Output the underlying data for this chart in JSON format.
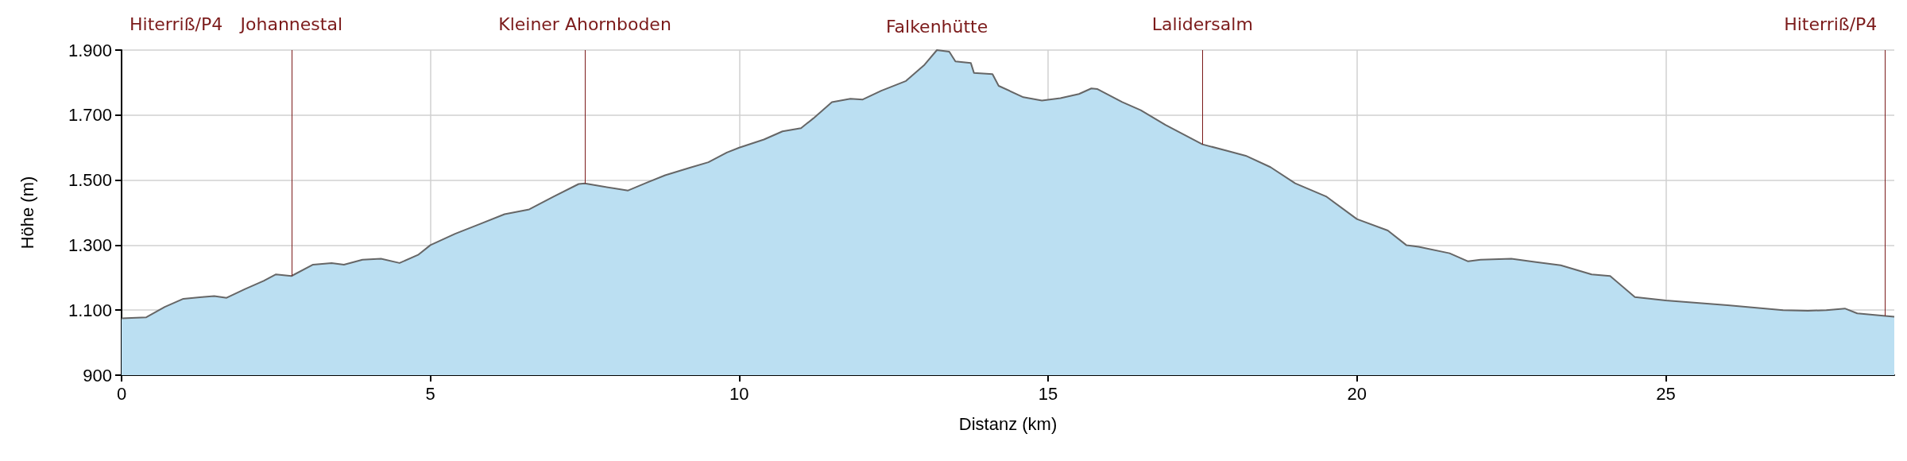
{
  "chart_data": {
    "type": "area",
    "xlabel": "Distanz (km)",
    "ylabel": "Höhe (m)",
    "xlim": [
      0,
      28.7
    ],
    "xticks": [
      0,
      5,
      10,
      15,
      20,
      25
    ],
    "ylim": [
      900,
      1900
    ],
    "yticks": [
      {
        "value": 900,
        "label": "900"
      },
      {
        "value": 1100,
        "label": "1.100"
      },
      {
        "value": 1300,
        "label": "1.300"
      },
      {
        "value": 1500,
        "label": "1.500"
      },
      {
        "value": 1700,
        "label": "1.700"
      },
      {
        "value": 1900,
        "label": "1.900"
      }
    ],
    "grid": true,
    "marker": "none",
    "line_style": "solid",
    "series": [
      {
        "color": "#bbdff2",
        "x": [
          0,
          0.4,
          0.7,
          1.0,
          1.3,
          1.5,
          1.7,
          2.0,
          2.3,
          2.5,
          2.75,
          3.1,
          3.4,
          3.6,
          3.9,
          4.2,
          4.5,
          4.8,
          5.0,
          5.4,
          5.8,
          6.2,
          6.6,
          7.0,
          7.4,
          7.5,
          7.8,
          8.0,
          8.2,
          8.5,
          8.8,
          9.2,
          9.5,
          9.8,
          10.0,
          10.4,
          10.7,
          11.0,
          11.2,
          11.5,
          11.8,
          12.0,
          12.3,
          12.7,
          13.0,
          13.2,
          13.4,
          13.5,
          13.75,
          13.8,
          14.1,
          14.2,
          14.6,
          14.9,
          15.2,
          15.5,
          15.7,
          15.8,
          16.2,
          16.5,
          16.9,
          17.5,
          17.9,
          18.2,
          18.6,
          19.0,
          19.5,
          20.0,
          20.5,
          20.8,
          21.0,
          21.5,
          21.8,
          22.0,
          22.5,
          22.9,
          23.3,
          23.8,
          24.1,
          24.5,
          25.0,
          26.0,
          26.9,
          27.3,
          27.6,
          27.9,
          28.1,
          28.7
        ],
        "values": [
          1075,
          1078,
          1110,
          1135,
          1140,
          1143,
          1138,
          1165,
          1190,
          1210,
          1205,
          1240,
          1245,
          1240,
          1255,
          1258,
          1245,
          1270,
          1300,
          1335,
          1365,
          1395,
          1410,
          1450,
          1488,
          1490,
          1480,
          1474,
          1468,
          1492,
          1515,
          1538,
          1555,
          1585,
          1600,
          1625,
          1650,
          1660,
          1690,
          1740,
          1750,
          1748,
          1775,
          1805,
          1855,
          1900,
          1895,
          1865,
          1860,
          1830,
          1826,
          1790,
          1755,
          1745,
          1752,
          1765,
          1782,
          1780,
          1740,
          1715,
          1670,
          1610,
          1590,
          1575,
          1540,
          1490,
          1450,
          1380,
          1345,
          1300,
          1295,
          1275,
          1250,
          1255,
          1258,
          1248,
          1238,
          1210,
          1205,
          1140,
          1130,
          1115,
          1100,
          1098,
          1100,
          1105,
          1090,
          1080
        ]
      }
    ],
    "annotations": [
      "Hiterriß/P4",
      {
        "text": "Falkenhütte",
        "x": 13.2,
        "y": 1900
      }
    ],
    "ref_lines": [
      {
        "axis": "x",
        "value": 2.75,
        "label": "Johannestal",
        "color": "#7b1a1a"
      },
      {
        "axis": "x",
        "value": 7.5,
        "label": "Kleiner Ahornboden",
        "color": "#7b1a1a"
      },
      {
        "axis": "x",
        "value": 17.5,
        "label": "Lalidersalm",
        "color": "#7b1a1a"
      },
      {
        "axis": "x",
        "value": 28.55,
        "label": "Hiterriß/P4",
        "color": "#7b1a1a"
      }
    ]
  }
}
